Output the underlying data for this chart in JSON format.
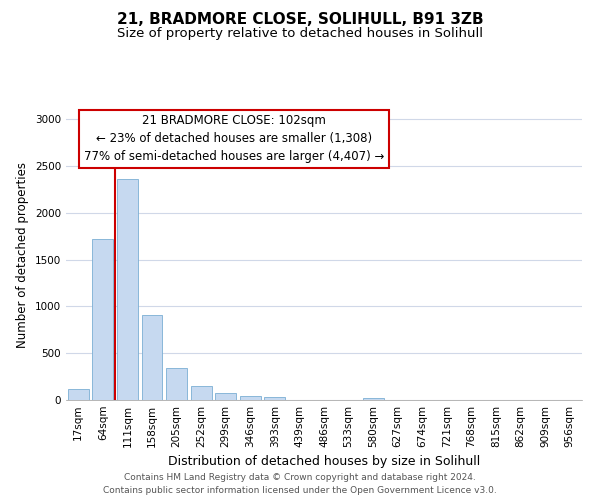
{
  "title": "21, BRADMORE CLOSE, SOLIHULL, B91 3ZB",
  "subtitle": "Size of property relative to detached houses in Solihull",
  "xlabel": "Distribution of detached houses by size in Solihull",
  "ylabel": "Number of detached properties",
  "footer_line1": "Contains HM Land Registry data © Crown copyright and database right 2024.",
  "footer_line2": "Contains public sector information licensed under the Open Government Licence v3.0.",
  "bin_labels": [
    "17sqm",
    "64sqm",
    "111sqm",
    "158sqm",
    "205sqm",
    "252sqm",
    "299sqm",
    "346sqm",
    "393sqm",
    "439sqm",
    "486sqm",
    "533sqm",
    "580sqm",
    "627sqm",
    "674sqm",
    "721sqm",
    "768sqm",
    "815sqm",
    "862sqm",
    "909sqm",
    "956sqm"
  ],
  "bar_heights": [
    120,
    1720,
    2360,
    910,
    340,
    155,
    80,
    45,
    30,
    0,
    0,
    0,
    25,
    0,
    0,
    0,
    0,
    0,
    0,
    0,
    0
  ],
  "bar_color": "#c6d9f0",
  "bar_edge_color": "#7bafd4",
  "vline_color": "#cc0000",
  "vline_x": 1.5,
  "annotation_box_text": "21 BRADMORE CLOSE: 102sqm\n← 23% of detached houses are smaller (1,308)\n77% of semi-detached houses are larger (4,407) →",
  "annotation_box_color": "#ffffff",
  "annotation_box_edge_color": "#cc0000",
  "ylim": [
    0,
    3100
  ],
  "yticks": [
    0,
    500,
    1000,
    1500,
    2000,
    2500,
    3000
  ],
  "background_color": "#ffffff",
  "grid_color": "#d0d8e8",
  "title_fontsize": 11,
  "subtitle_fontsize": 9.5,
  "xlabel_fontsize": 9,
  "ylabel_fontsize": 8.5,
  "tick_fontsize": 7.5,
  "annotation_fontsize": 8.5,
  "footer_fontsize": 6.5
}
